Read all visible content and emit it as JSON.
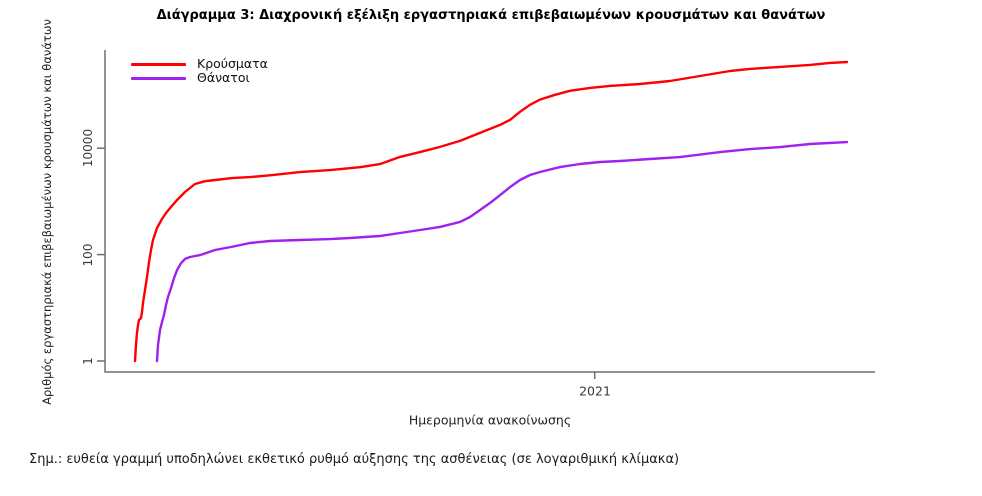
{
  "title": "Διάγραμμα 3: Διαχρονική εξέλιξη εργαστηριακά επιβεβαιωμένων κρουσμάτων και θανάτων",
  "note": "Σημ.: ευθεία γραμμή υποδηλώνει εκθετικό ρυθμό αύξησης της ασθένειας (σε λογαριθμική κλίμακα)",
  "colors": {
    "axis": "#6e6e6e",
    "cases": "#ff0000",
    "deaths": "#a020f0"
  },
  "chart_data": {
    "type": "line",
    "title": "Διάγραμμα 3: Διαχρονική εξέλιξη εργαστηριακά επιβεβαιωμένων κρουσμάτων και θανάτων",
    "xlabel": "Ημερομηνία ανακοίνωσης",
    "ylabel": "Αριθμός εργαστηριακά επιβεβαιωμένων κρουσμάτων και θανάτων",
    "grid": false,
    "legend_position": "top-left",
    "y_axis": {
      "scale": "log10",
      "ticks": [
        1,
        100,
        10000
      ],
      "range": [
        1,
        650000
      ]
    },
    "x_axis": {
      "tick_labels": [
        "2021"
      ],
      "tick_fractions": [
        0.636
      ]
    },
    "series": [
      {
        "name": "Κρούσματα",
        "color": "#ff0000",
        "points": [
          [
            0.039,
            1
          ],
          [
            0.0403,
            2
          ],
          [
            0.0416,
            3.4
          ],
          [
            0.0429,
            4.7
          ],
          [
            0.0442,
            5.9
          ],
          [
            0.0468,
            6.4
          ],
          [
            0.0481,
            8.3
          ],
          [
            0.0494,
            12.3
          ],
          [
            0.0519,
            21.6
          ],
          [
            0.0545,
            38
          ],
          [
            0.0571,
            72
          ],
          [
            0.0597,
            122
          ],
          [
            0.0623,
            188
          ],
          [
            0.0675,
            316
          ],
          [
            0.074,
            467
          ],
          [
            0.0792,
            605
          ],
          [
            0.0857,
            787
          ],
          [
            0.0935,
            1060
          ],
          [
            0.1039,
            1500
          ],
          [
            0.1169,
            2120
          ],
          [
            0.1299,
            2400
          ],
          [
            0.1429,
            2520
          ],
          [
            0.1649,
            2740
          ],
          [
            0.1883,
            2860
          ],
          [
            0.2143,
            3100
          ],
          [
            0.2532,
            3560
          ],
          [
            0.2922,
            3870
          ],
          [
            0.3312,
            4400
          ],
          [
            0.3571,
            5030
          ],
          [
            0.3831,
            6850
          ],
          [
            0.4091,
            8450
          ],
          [
            0.4351,
            10600
          ],
          [
            0.461,
            13700
          ],
          [
            0.487,
            19400
          ],
          [
            0.513,
            27400
          ],
          [
            0.526,
            34100
          ],
          [
            0.539,
            48300
          ],
          [
            0.5519,
            65500
          ],
          [
            0.5649,
            81800
          ],
          [
            0.5844,
            101000
          ],
          [
            0.6039,
            120000
          ],
          [
            0.6299,
            136000
          ],
          [
            0.6558,
            148000
          ],
          [
            0.6948,
            161000
          ],
          [
            0.7338,
            183000
          ],
          [
            0.7727,
            228000
          ],
          [
            0.8117,
            283000
          ],
          [
            0.8377,
            310000
          ],
          [
            0.8766,
            338000
          ],
          [
            0.9156,
            368000
          ],
          [
            0.9416,
            401000
          ],
          [
            0.9636,
            418000
          ]
        ]
      },
      {
        "name": "Θάνατοι",
        "color": "#a020f0",
        "points": [
          [
            0.0675,
            1
          ],
          [
            0.0688,
            2
          ],
          [
            0.0714,
            3.8
          ],
          [
            0.074,
            5.4
          ],
          [
            0.0766,
            7.3
          ],
          [
            0.0792,
            11.3
          ],
          [
            0.0818,
            16
          ],
          [
            0.0857,
            23.5
          ],
          [
            0.0896,
            36
          ],
          [
            0.0935,
            51
          ],
          [
            0.0987,
            69
          ],
          [
            0.1039,
            83
          ],
          [
            0.1104,
            90
          ],
          [
            0.1234,
            98
          ],
          [
            0.1429,
            122
          ],
          [
            0.1636,
            139
          ],
          [
            0.1883,
            165
          ],
          [
            0.2143,
            180
          ],
          [
            0.2532,
            188
          ],
          [
            0.2922,
            196
          ],
          [
            0.3182,
            205
          ],
          [
            0.3571,
            224
          ],
          [
            0.3831,
            255
          ],
          [
            0.4091,
            290
          ],
          [
            0.4351,
            331
          ],
          [
            0.461,
            411
          ],
          [
            0.474,
            510
          ],
          [
            0.487,
            690
          ],
          [
            0.5,
            935
          ],
          [
            0.513,
            1310
          ],
          [
            0.526,
            1860
          ],
          [
            0.539,
            2520
          ],
          [
            0.5519,
            3130
          ],
          [
            0.5649,
            3570
          ],
          [
            0.5909,
            4420
          ],
          [
            0.6169,
            5050
          ],
          [
            0.6429,
            5500
          ],
          [
            0.6688,
            5740
          ],
          [
            0.7078,
            6260
          ],
          [
            0.7468,
            6810
          ],
          [
            0.7987,
            8430
          ],
          [
            0.8377,
            9620
          ],
          [
            0.8766,
            10500
          ],
          [
            0.9156,
            12000
          ],
          [
            0.9636,
            13000
          ]
        ]
      }
    ]
  }
}
